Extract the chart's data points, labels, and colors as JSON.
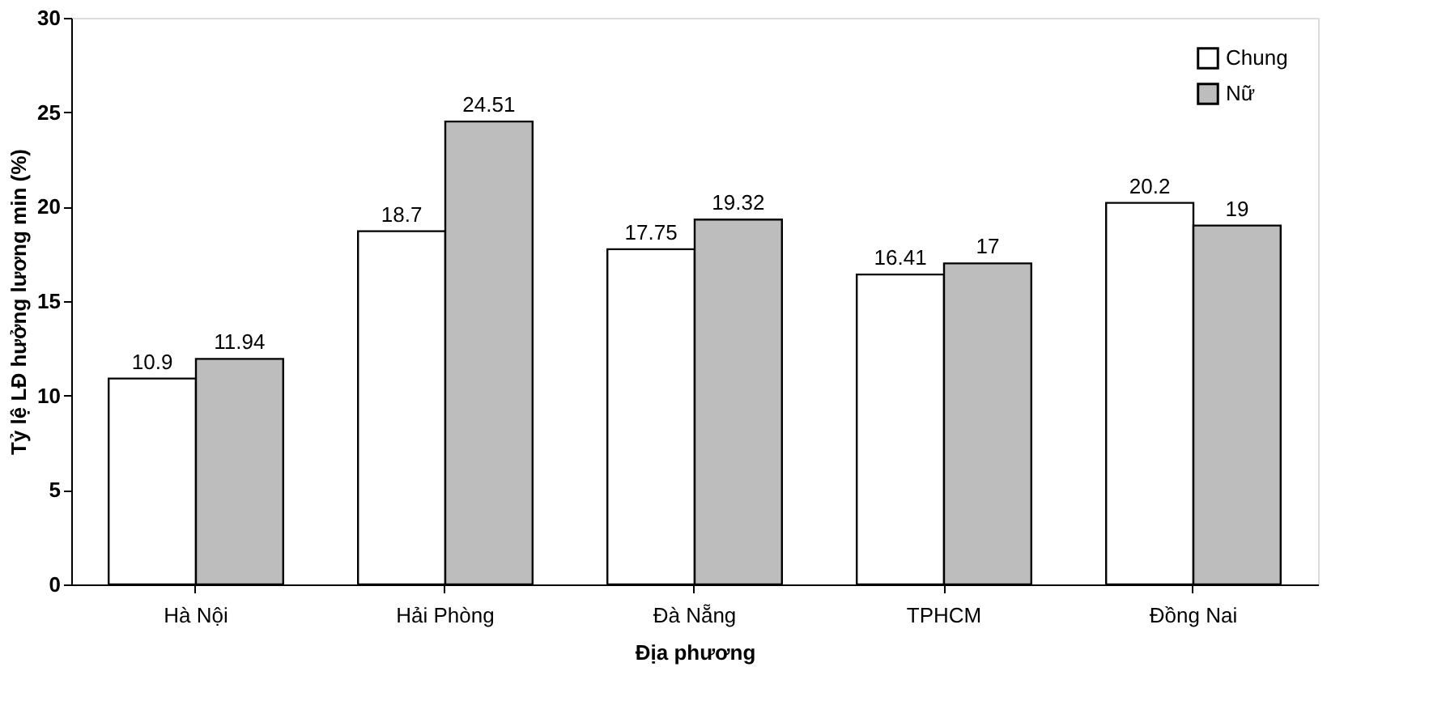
{
  "chart_data": {
    "type": "bar",
    "xlabel": "Địa phương",
    "ylabel": "Tỷ lệ LĐ hưởng lương min (%)",
    "categories": [
      "Hà Nội",
      "Hải Phòng",
      "Đà Nẵng",
      "TPHCM",
      "Đồng Nai"
    ],
    "series": [
      {
        "name": "Chung",
        "color": "#ffffff",
        "values": [
          10.9,
          18.7,
          17.75,
          16.41,
          20.2
        ]
      },
      {
        "name": "Nữ",
        "color": "#bdbdbd",
        "values": [
          11.94,
          24.51,
          19.32,
          17,
          19
        ]
      }
    ],
    "ylim": [
      0,
      30
    ],
    "yticks": [
      0,
      5,
      10,
      15,
      20,
      25,
      30
    ],
    "grid": false,
    "legend": "top right",
    "data_labels": true
  }
}
